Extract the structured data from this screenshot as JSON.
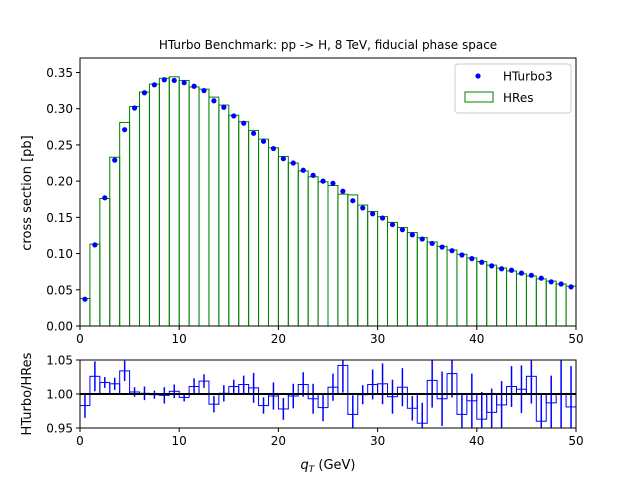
{
  "chart_data": [
    {
      "type": "bar",
      "title": "HTurbo Benchmark: pp -> H, 8 TeV, fiducial phase space",
      "xlabel": "",
      "ylabel": "cross section [pb]",
      "xlim": [
        0,
        50
      ],
      "ylim": [
        0,
        0.37
      ],
      "x_ticks": [
        "0",
        "10",
        "20",
        "30",
        "40",
        "50"
      ],
      "y_ticks": [
        "0.00",
        "0.05",
        "0.10",
        "0.15",
        "0.20",
        "0.25",
        "0.30",
        "0.35"
      ],
      "bin_width": 1,
      "bin_starts": [
        0,
        1,
        2,
        3,
        4,
        5,
        6,
        7,
        8,
        9,
        10,
        11,
        12,
        13,
        14,
        15,
        16,
        17,
        18,
        19,
        20,
        21,
        22,
        23,
        24,
        25,
        26,
        27,
        28,
        29,
        30,
        31,
        32,
        33,
        34,
        35,
        36,
        37,
        38,
        39,
        40,
        41,
        42,
        43,
        44,
        45,
        46,
        47,
        48,
        49
      ],
      "legend_position": "top-right",
      "series": [
        {
          "name": "HTurbo3",
          "kind": "points",
          "color": "#0000ff",
          "values": [
            0.037,
            0.112,
            0.177,
            0.229,
            0.271,
            0.301,
            0.322,
            0.333,
            0.34,
            0.339,
            0.336,
            0.331,
            0.325,
            0.311,
            0.302,
            0.29,
            0.28,
            0.266,
            0.255,
            0.245,
            0.231,
            0.225,
            0.215,
            0.208,
            0.2,
            0.197,
            0.186,
            0.173,
            0.163,
            0.155,
            0.149,
            0.14,
            0.133,
            0.126,
            0.12,
            0.114,
            0.109,
            0.104,
            0.098,
            0.093,
            0.088,
            0.083,
            0.079,
            0.077,
            0.073,
            0.07,
            0.066,
            0.061,
            0.058,
            0.054
          ],
          "errors": [
            0.0015,
            0.002,
            0.002,
            0.003,
            0.003,
            0.002,
            0.002,
            0.002,
            0.003,
            0.003,
            0.002,
            0.002,
            0.002,
            0.002,
            0.002,
            0.002,
            0.002,
            0.002,
            0.002,
            0.002,
            0.002,
            0.002,
            0.002,
            0.002,
            0.002,
            0.002,
            0.002,
            0.002,
            0.002,
            0.002,
            0.002,
            0.002,
            0.002,
            0.002,
            0.002,
            0.002,
            0.002,
            0.002,
            0.002,
            0.002,
            0.002,
            0.002,
            0.002,
            0.002,
            0.002,
            0.002,
            0.002,
            0.002,
            0.002,
            0.002
          ]
        },
        {
          "name": "HRes",
          "kind": "step-histogram",
          "color": "#008000",
          "values": [
            0.038,
            0.113,
            0.176,
            0.233,
            0.281,
            0.303,
            0.323,
            0.334,
            0.342,
            0.344,
            0.339,
            0.33,
            0.327,
            0.316,
            0.305,
            0.291,
            0.282,
            0.27,
            0.258,
            0.246,
            0.234,
            0.225,
            0.214,
            0.206,
            0.199,
            0.194,
            0.182,
            0.181,
            0.167,
            0.158,
            0.151,
            0.143,
            0.136,
            0.129,
            0.122,
            0.116,
            0.11,
            0.105,
            0.099,
            0.094,
            0.089,
            0.084,
            0.08,
            0.076,
            0.072,
            0.069,
            0.065,
            0.062,
            0.058,
            0.055
          ]
        }
      ]
    },
    {
      "type": "bar",
      "title": "",
      "xlabel": "q_T (GeV)",
      "ylabel": "HTurbo/HRes",
      "xlim": [
        0,
        50
      ],
      "ylim": [
        0.95,
        1.05
      ],
      "x_ticks": [
        "0",
        "10",
        "20",
        "30",
        "40",
        "50"
      ],
      "y_ticks": [
        "0.95",
        "1.00",
        "1.05"
      ],
      "reference_line": 1.0,
      "bin_width": 1,
      "series": [
        {
          "name": "",
          "kind": "ratio-step-with-errors",
          "color": "#0000ff",
          "values": [
            0.983,
            1.026,
            1.017,
            1.015,
            1.034,
            1.003,
            1.001,
            0.999,
            0.998,
            1.004,
            0.995,
            1.011,
            1.019,
            0.985,
            1.001,
            1.011,
            1.014,
            1.009,
            0.983,
            0.997,
            0.978,
            0.997,
            1.014,
            0.993,
            0.98,
            1.01,
            1.042,
            0.97,
            0.999,
            1.014,
            1.015,
            0.996,
            1.01,
            0.979,
            0.957,
            1.02,
            0.993,
            1.03,
            0.97,
            0.99,
            0.963,
            0.973,
            0.984,
            1.011,
            1.007,
            1.026,
            0.96,
            0.987,
            1.0,
            0.981
          ],
          "errors": [
            0.018,
            0.022,
            0.008,
            0.009,
            0.015,
            0.007,
            0.01,
            0.006,
            0.012,
            0.01,
            0.006,
            0.012,
            0.01,
            0.012,
            0.012,
            0.01,
            0.013,
            0.022,
            0.012,
            0.02,
            0.016,
            0.018,
            0.018,
            0.022,
            0.02,
            0.02,
            0.04,
            0.028,
            0.014,
            0.022,
            0.03,
            0.025,
            0.028,
            0.018,
            0.03,
            0.04,
            0.04,
            0.035,
            0.03,
            0.04,
            0.04,
            0.035,
            0.035,
            0.03,
            0.035,
            0.04,
            0.04,
            0.04,
            0.05,
            0.06
          ]
        }
      ]
    }
  ]
}
